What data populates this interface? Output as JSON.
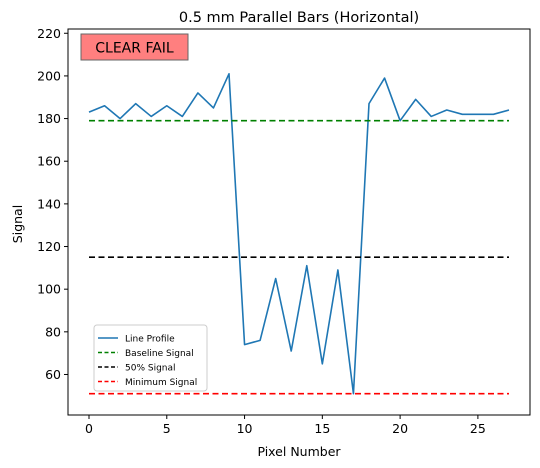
{
  "chart_data": {
    "type": "line",
    "title": "0.5 mm Parallel Bars (Horizontal)",
    "xlabel": "Pixel Number",
    "ylabel": "Signal",
    "xlim": [
      -1.35,
      28.35
    ],
    "ylim": [
      41,
      222
    ],
    "xticks": [
      0,
      5,
      10,
      15,
      20,
      25
    ],
    "yticks": [
      60,
      80,
      100,
      120,
      140,
      160,
      180,
      200,
      220
    ],
    "grid": false,
    "legend_position": "lower-left",
    "annotation": {
      "text": "CLEAR FAIL",
      "background": "#ff7f7f"
    },
    "series": [
      {
        "name": "Line Profile",
        "kind": "line",
        "color": "#1f77b4",
        "x": [
          0,
          1,
          2,
          3,
          4,
          5,
          6,
          7,
          8,
          9,
          10,
          11,
          12,
          13,
          14,
          15,
          16,
          17,
          18,
          19,
          20,
          21,
          22,
          23,
          24,
          25,
          26,
          27
        ],
        "y": [
          183,
          186,
          180,
          187,
          181,
          186,
          181,
          192,
          185,
          201,
          74,
          76,
          105,
          71,
          111,
          65,
          109,
          51,
          187,
          199,
          179,
          189,
          181,
          184,
          182,
          182,
          182,
          184
        ]
      },
      {
        "name": "Baseline Signal",
        "kind": "hline",
        "style": "dashed",
        "color": "#008000",
        "x": [
          0,
          27
        ],
        "y": 179
      },
      {
        "name": "50% Signal",
        "kind": "hline",
        "style": "dashed",
        "color": "#000000",
        "x": [
          0,
          27
        ],
        "y": 115
      },
      {
        "name": "Minimum Signal",
        "kind": "hline",
        "style": "dashed",
        "color": "#ff0000",
        "x": [
          0,
          27
        ],
        "y": 51
      }
    ]
  }
}
